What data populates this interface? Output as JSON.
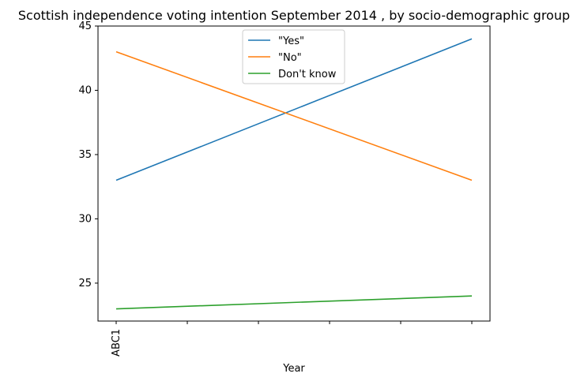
{
  "chart_data": {
    "type": "line",
    "title": "Scottish independence voting intention September 2014 , by socio-demographic group",
    "xlabel": "Year",
    "ylabel": "",
    "categories": [
      "ABC1",
      "",
      "",
      "",
      "",
      ""
    ],
    "ylim": [
      22.05,
      45.0
    ],
    "yticks": [
      25,
      30,
      35,
      40,
      45
    ],
    "grid": false,
    "legend_position": "top-center",
    "series": [
      {
        "name": "\"Yes\"",
        "color": "#1f77b4",
        "points": [
          {
            "x": 0,
            "y": 33
          },
          {
            "x": 5,
            "y": 44
          }
        ]
      },
      {
        "name": "\"No\"",
        "color": "#ff7f0e",
        "points": [
          {
            "x": 0,
            "y": 43
          },
          {
            "x": 5,
            "y": 33
          }
        ]
      },
      {
        "name": "Don't know",
        "color": "#2ca02c",
        "points": [
          {
            "x": 0,
            "y": 23
          },
          {
            "x": 5,
            "y": 24
          }
        ]
      }
    ]
  }
}
